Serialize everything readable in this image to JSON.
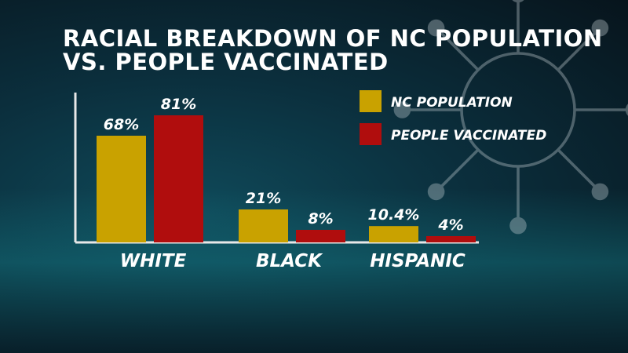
{
  "chart_data": {
    "type": "bar",
    "title_line1": "RACIAL BREAKDOWN OF NC POPULATION",
    "title_line2": "VS. PEOPLE VACCINATED",
    "categories": [
      "WHITE",
      "BLACK",
      "HISPANIC"
    ],
    "series": [
      {
        "name": "NC POPULATION",
        "values": [
          68,
          21,
          10.4
        ],
        "labels": [
          "68%",
          "21%",
          "10.4%"
        ],
        "color": "#c9a200"
      },
      {
        "name": "PEOPLE VACCINATED",
        "values": [
          81,
          8,
          4
        ],
        "labels": [
          "81%",
          "8%",
          "4%"
        ],
        "color": "#b00d0d"
      }
    ],
    "ylim": [
      0,
      100
    ],
    "legend_position": "top-right",
    "grid": false
  }
}
